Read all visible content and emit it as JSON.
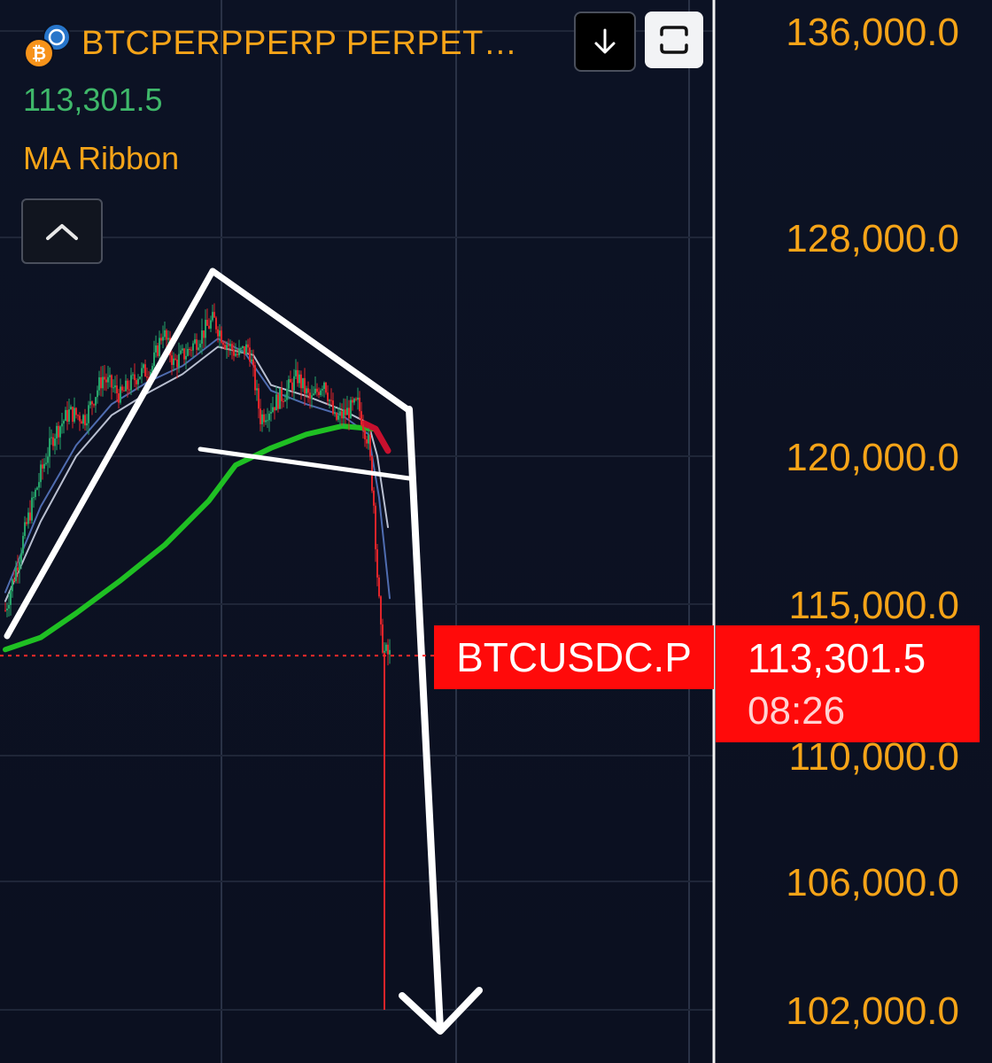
{
  "header": {
    "symbol_title": "BTCPERPPERP PERPET…",
    "last_price": "113,301.5",
    "indicator_name": "MA Ribbon",
    "download_icon": "arrow-down-icon",
    "fullscreen_icon": "fullscreen-icon",
    "collapse_icon": "chevron-up-icon",
    "coin_icon": "bitcoin-icon"
  },
  "price_tag": {
    "symbol": "BTCUSDC.P",
    "price": "113,301.5",
    "countdown": "08:26"
  },
  "colors": {
    "background": "#0c1120",
    "axis_text": "#f6a418",
    "bullish": "#26a269",
    "bearish": "#e0242a",
    "ma_long": "#1fc023",
    "ma_short_1": "#b9bfd0",
    "ma_short_2": "#4f6cb0",
    "tag_red": "#ff0a0a",
    "annotation": "#ffffff"
  },
  "chart_data": {
    "type": "candlestick",
    "y_axis": {
      "ticks": [
        136000,
        128000,
        120000,
        115000,
        110000,
        106000,
        102000
      ],
      "tick_labels": [
        "136,000.0",
        "128,000.0",
        "120,000.0",
        "115,000.0",
        "110,000.0",
        "106,000.0",
        "102,000.0"
      ],
      "range": [
        100500,
        137500
      ],
      "scale": "nonlinear",
      "position": "right"
    },
    "grid": true,
    "current_price": 113301.5,
    "close_series": [
      [
        0,
        114800
      ],
      [
        12,
        116200
      ],
      [
        25,
        117800
      ],
      [
        40,
        119400
      ],
      [
        55,
        120800
      ],
      [
        72,
        121600
      ],
      [
        90,
        121400
      ],
      [
        110,
        122900
      ],
      [
        130,
        122200
      ],
      [
        150,
        123000
      ],
      [
        165,
        123200
      ],
      [
        178,
        124600
      ],
      [
        190,
        123400
      ],
      [
        205,
        123800
      ],
      [
        220,
        124400
      ],
      [
        235,
        125000
      ],
      [
        248,
        124200
      ],
      [
        262,
        123700
      ],
      [
        275,
        124000
      ],
      [
        288,
        121400
      ],
      [
        300,
        121800
      ],
      [
        315,
        122300
      ],
      [
        330,
        122900
      ],
      [
        345,
        122000
      ],
      [
        360,
        122800
      ],
      [
        372,
        121300
      ],
      [
        385,
        121600
      ],
      [
        398,
        121900
      ],
      [
        410,
        120500
      ],
      [
        416,
        118400
      ],
      [
        420,
        116000
      ],
      [
        424,
        114000
      ],
      [
        428,
        113400
      ],
      [
        434,
        113301.5
      ]
    ],
    "wick_low": [
      [
        428,
        102000
      ]
    ],
    "ma_long": [
      [
        0,
        113500
      ],
      [
        40,
        113900
      ],
      [
        80,
        114700
      ],
      [
        130,
        115800
      ],
      [
        180,
        117000
      ],
      [
        230,
        118500
      ],
      [
        260,
        119700
      ],
      [
        300,
        120300
      ],
      [
        340,
        120800
      ],
      [
        380,
        121100
      ],
      [
        415,
        121000
      ]
    ],
    "ma_long_tail": [
      [
        405,
        121200
      ],
      [
        418,
        121000
      ],
      [
        432,
        120200
      ]
    ],
    "ma_short_1": [
      [
        0,
        115100
      ],
      [
        40,
        117800
      ],
      [
        80,
        120000
      ],
      [
        120,
        121500
      ],
      [
        160,
        122300
      ],
      [
        200,
        123000
      ],
      [
        240,
        124000
      ],
      [
        280,
        123700
      ],
      [
        300,
        122600
      ],
      [
        340,
        122200
      ],
      [
        380,
        121700
      ],
      [
        410,
        121200
      ],
      [
        420,
        120000
      ],
      [
        432,
        117600
      ]
    ],
    "ma_short_2": [
      [
        0,
        115400
      ],
      [
        40,
        118300
      ],
      [
        80,
        120400
      ],
      [
        120,
        121900
      ],
      [
        160,
        122700
      ],
      [
        200,
        123300
      ],
      [
        240,
        124300
      ],
      [
        270,
        123800
      ],
      [
        300,
        122400
      ],
      [
        340,
        121900
      ],
      [
        380,
        121500
      ],
      [
        410,
        120800
      ],
      [
        422,
        118600
      ],
      [
        434,
        115200
      ]
    ]
  }
}
